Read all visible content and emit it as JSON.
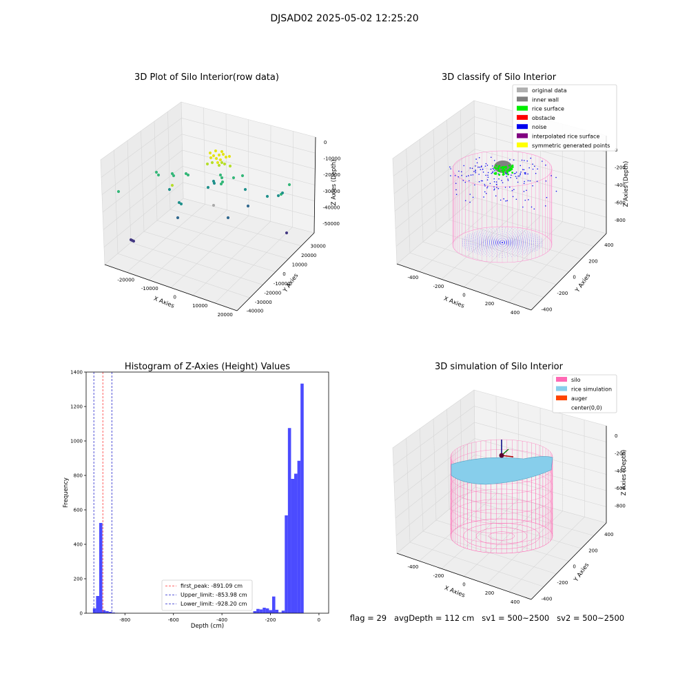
{
  "figure": {
    "suptitle": "DJSAD02 2025-05-02 12:25:20",
    "footer": "flag = 29   avgDepth = 112 cm   sv1 = 500~2500   sv2 = 500~2500"
  },
  "chart_data": [
    {
      "type": "scatter",
      "title": "3D Plot of Silo Interior(row data)",
      "xlabel": "X Axies",
      "ylabel": "Y Axies",
      "zlabel": "Z Axies (Depth)",
      "x_ticks": [
        "-20000",
        "-10000",
        "0",
        "10000",
        "20000"
      ],
      "y_ticks": [
        "-40000",
        "-30000",
        "-20000",
        "-10000",
        "0",
        "10000",
        "20000",
        "30000"
      ],
      "z_ticks": [
        "0",
        "-10000",
        "-20000",
        "-30000",
        "-40000",
        "-50000"
      ],
      "colors": [
        "#e3e41a",
        "#b5de2b",
        "#35b779",
        "#21918c",
        "#31688e",
        "#443983",
        "#aaaaaa"
      ]
    },
    {
      "type": "scatter",
      "title": "3D classify of Silo Interior",
      "xlabel": "X Axies",
      "ylabel": "Y Axies",
      "zlabel": "Z Axies (Depth)",
      "x_ticks": [
        "-400",
        "-200",
        "0",
        "200",
        "400"
      ],
      "y_ticks": [
        "-400",
        "-200",
        "0",
        "200",
        "400"
      ],
      "z_ticks": [
        "0",
        "-200",
        "-400",
        "-600",
        "-800"
      ],
      "legend": [
        {
          "label": "original data",
          "color": "#b0b0b0"
        },
        {
          "label": "inner wall",
          "color": "#808080"
        },
        {
          "label": "rice surface",
          "color": "#00ee00"
        },
        {
          "label": "obstacle",
          "color": "#ff0000"
        },
        {
          "label": "noise",
          "color": "#0000ee"
        },
        {
          "label": "interpolated rice surface",
          "color": "#800080"
        },
        {
          "label": "symmetric generated points",
          "color": "#ffff00"
        }
      ]
    },
    {
      "type": "bar",
      "title": "Histogram of Z-Axies (Height) Values",
      "xlabel": "Depth (cm)",
      "ylabel": "Frequency",
      "xlim": [
        -960,
        40
      ],
      "ylim": [
        0,
        1400
      ],
      "x_ticks": [
        -800,
        -600,
        -400,
        -200,
        0
      ],
      "y_ticks": [
        0,
        200,
        400,
        600,
        800,
        1000,
        1200,
        1400
      ],
      "bar_color": "#4b4bff",
      "bins": [
        {
          "x0": -932,
          "x1": -919,
          "count": 28
        },
        {
          "x0": -919,
          "x1": -906,
          "count": 100
        },
        {
          "x0": -906,
          "x1": -893,
          "count": 524
        },
        {
          "x0": -893,
          "x1": -880,
          "count": 18
        },
        {
          "x0": -880,
          "x1": -867,
          "count": 12
        },
        {
          "x0": -867,
          "x1": -854,
          "count": 8
        },
        {
          "x0": -854,
          "x1": -841,
          "count": 4
        },
        {
          "x0": -841,
          "x1": -828,
          "count": 2
        },
        {
          "x0": -271,
          "x1": -258,
          "count": 12
        },
        {
          "x0": -258,
          "x1": -245,
          "count": 25
        },
        {
          "x0": -245,
          "x1": -232,
          "count": 22
        },
        {
          "x0": -232,
          "x1": -219,
          "count": 32
        },
        {
          "x0": -219,
          "x1": -206,
          "count": 28
        },
        {
          "x0": -206,
          "x1": -193,
          "count": 18
        },
        {
          "x0": -193,
          "x1": -180,
          "count": 97
        },
        {
          "x0": -180,
          "x1": -167,
          "count": 20
        },
        {
          "x0": -167,
          "x1": -154,
          "count": 5
        },
        {
          "x0": -154,
          "x1": -141,
          "count": 15
        },
        {
          "x0": -141,
          "x1": -128,
          "count": 568
        },
        {
          "x0": -128,
          "x1": -115,
          "count": 1075
        },
        {
          "x0": -115,
          "x1": -102,
          "count": 780
        },
        {
          "x0": -102,
          "x1": -89,
          "count": 810
        },
        {
          "x0": -89,
          "x1": -76,
          "count": 885
        },
        {
          "x0": -76,
          "x1": -63,
          "count": 1333
        }
      ],
      "reference_lines": [
        {
          "label": "first_peak: -891.09 cm",
          "x": -891.09,
          "color": "#ff3333"
        },
        {
          "label": "Upper_limit: -853.98 cm",
          "x": -853.98,
          "color": "#2222cc"
        },
        {
          "label": "Lower_limit: -928.20 cm",
          "x": -928.2,
          "color": "#2222cc"
        }
      ]
    },
    {
      "type": "scatter",
      "title": "3D simulation of Silo Interior",
      "xlabel": "X Axies",
      "ylabel": "Y Axies",
      "zlabel": "Z Axies (Depth)",
      "x_ticks": [
        "-400",
        "-200",
        "0",
        "200",
        "400"
      ],
      "y_ticks": [
        "-400",
        "-200",
        "0",
        "200",
        "400"
      ],
      "z_ticks": [
        "0",
        "-200",
        "-400",
        "-600",
        "-800"
      ],
      "legend": [
        {
          "label": "silo",
          "color": "#ff69b4"
        },
        {
          "label": "rice simulation",
          "color": "#87ceeb"
        },
        {
          "label": "auger",
          "color": "#ff4500"
        },
        {
          "label": "center(0,0)",
          "color": "#ffffff"
        }
      ]
    }
  ]
}
